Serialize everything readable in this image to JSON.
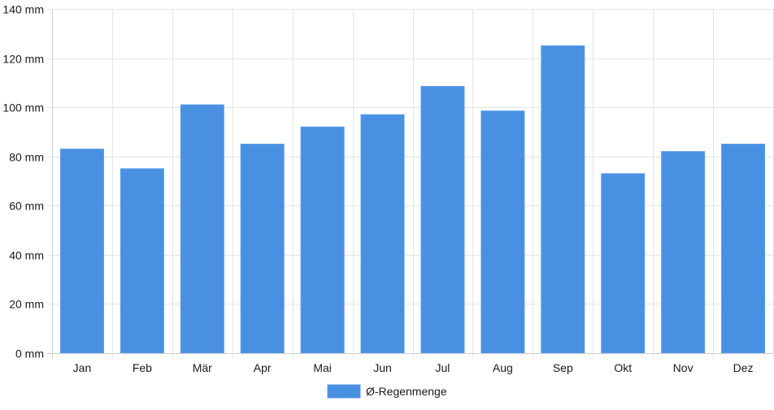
{
  "chart_data": {
    "type": "bar",
    "categories": [
      "Jan",
      "Feb",
      "Mär",
      "Apr",
      "Mai",
      "Jun",
      "Jul",
      "Aug",
      "Sep",
      "Okt",
      "Nov",
      "Dez"
    ],
    "series": [
      {
        "name": "Ø-Regenmenge",
        "values": [
          83,
          75,
          101,
          85,
          92,
          97,
          108.5,
          98.5,
          125,
          73,
          82,
          85
        ]
      }
    ],
    "y_unit": "mm",
    "ylim": [
      0,
      140
    ],
    "yticks": [
      0,
      20,
      40,
      60,
      80,
      100,
      120,
      140
    ],
    "grid": true,
    "legend_position": "bottom-center"
  },
  "colors": {
    "bar": "#4a90e2",
    "bar_stroke": "#5b9be6",
    "grid": "#e3e3e3",
    "axis": "#cfcfcf",
    "text": "#1a1a1a"
  }
}
